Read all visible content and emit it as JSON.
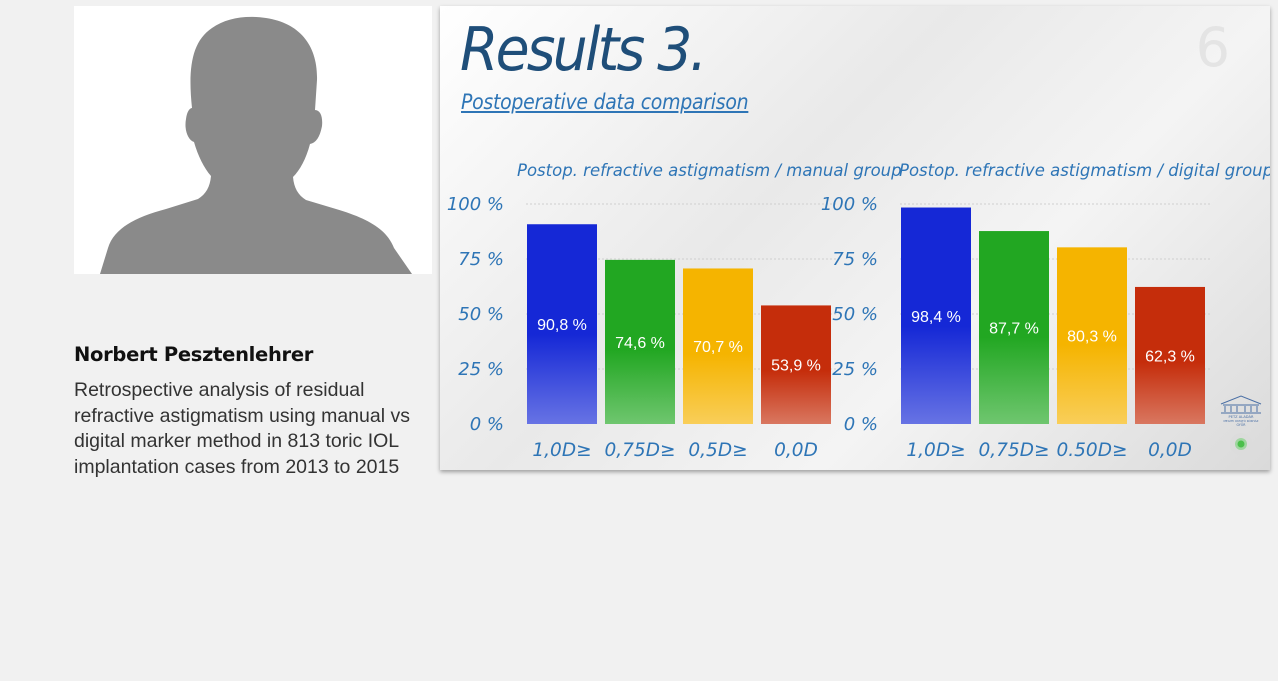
{
  "speaker": {
    "name": "Norbert Pesztenlehrer",
    "description": "Retrospective analysis of residual refractive astigmatism using manual vs digital marker method in 813 toric IOL implantation cases from 2013 to 2015"
  },
  "slide": {
    "title": "Results 3.",
    "number": "6",
    "subtitle": "Postoperative data comparison"
  },
  "colors": {
    "bars": [
      "#1528d6",
      "#22a722",
      "#f5b400",
      "#c52d0b"
    ],
    "title": "#1f4e79",
    "accent": "#2e75b6"
  },
  "chart_data": [
    {
      "type": "bar",
      "title": "Postop. refractive astigmatism / manual group",
      "categories": [
        "1,0D≥",
        "0,75D≥",
        "0,5D≥",
        "0,0D"
      ],
      "values": [
        90.8,
        74.6,
        70.7,
        53.9
      ],
      "value_labels": [
        "90,8 %",
        "74,6 %",
        "70,7 %",
        "53,9 %"
      ],
      "y_ticks": [
        "0 %",
        "25 %",
        "50 %",
        "75 %",
        "100 %"
      ],
      "ylim": [
        0,
        100
      ],
      "grid": true
    },
    {
      "type": "bar",
      "title": "Postop. refractive astigmatism / digital group",
      "categories": [
        "1,0D≥",
        "0,75D≥",
        "0.50D≥",
        "0,0D"
      ],
      "values": [
        98.4,
        87.7,
        80.3,
        62.3
      ],
      "value_labels": [
        "98,4 %",
        "87,7 %",
        "80,3 %",
        "62,3 %"
      ],
      "y_ticks": [
        "0 %",
        "25 %",
        "50 %",
        "75 %",
        "100 %"
      ],
      "ylim": [
        0,
        100
      ],
      "grid": true
    }
  ],
  "logo": {
    "name": "PETZ ALADÁR",
    "line2": "MEGYEI OKTATÓ KÓRHÁZ",
    "city": "GYŐR"
  }
}
